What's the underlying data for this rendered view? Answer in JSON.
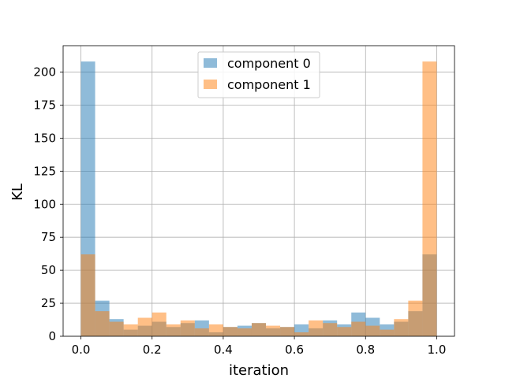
{
  "chart_data": {
    "type": "bar",
    "title": "",
    "xlabel": "iteration",
    "ylabel": "KL",
    "xlim": [
      -0.05,
      1.05
    ],
    "ylim": [
      0,
      220
    ],
    "xticks": [
      0.0,
      0.2,
      0.4,
      0.6,
      0.8,
      1.0
    ],
    "xtick_labels": [
      "0.0",
      "0.2",
      "0.4",
      "0.6",
      "0.8",
      "1.0"
    ],
    "yticks": [
      0,
      25,
      50,
      75,
      100,
      125,
      150,
      175,
      200
    ],
    "ytick_labels": [
      "0",
      "25",
      "50",
      "75",
      "100",
      "125",
      "150",
      "175",
      "200"
    ],
    "grid": true,
    "legend_position": "top-center",
    "bin_edges": [
      0.0,
      0.04,
      0.08,
      0.12,
      0.16,
      0.2,
      0.24,
      0.28,
      0.32,
      0.36,
      0.4,
      0.44,
      0.48,
      0.52,
      0.56,
      0.6,
      0.64,
      0.68,
      0.72,
      0.76,
      0.8,
      0.84,
      0.88,
      0.92,
      0.96,
      1.0
    ],
    "series": [
      {
        "name": "component 0",
        "color": "#1f77b4",
        "alpha": 0.5,
        "values": [
          208,
          27,
          13,
          5,
          8,
          11,
          7,
          10,
          12,
          3,
          7,
          8,
          10,
          6,
          7,
          9,
          6,
          12,
          9,
          18,
          14,
          9,
          11,
          19,
          62
        ]
      },
      {
        "name": "component 1",
        "color": "#ff7f0e",
        "alpha": 0.5,
        "values": [
          62,
          19,
          11,
          9,
          14,
          18,
          9,
          12,
          6,
          9,
          7,
          6,
          10,
          8,
          7,
          3,
          12,
          10,
          7,
          11,
          8,
          5,
          13,
          27,
          208
        ]
      }
    ]
  }
}
